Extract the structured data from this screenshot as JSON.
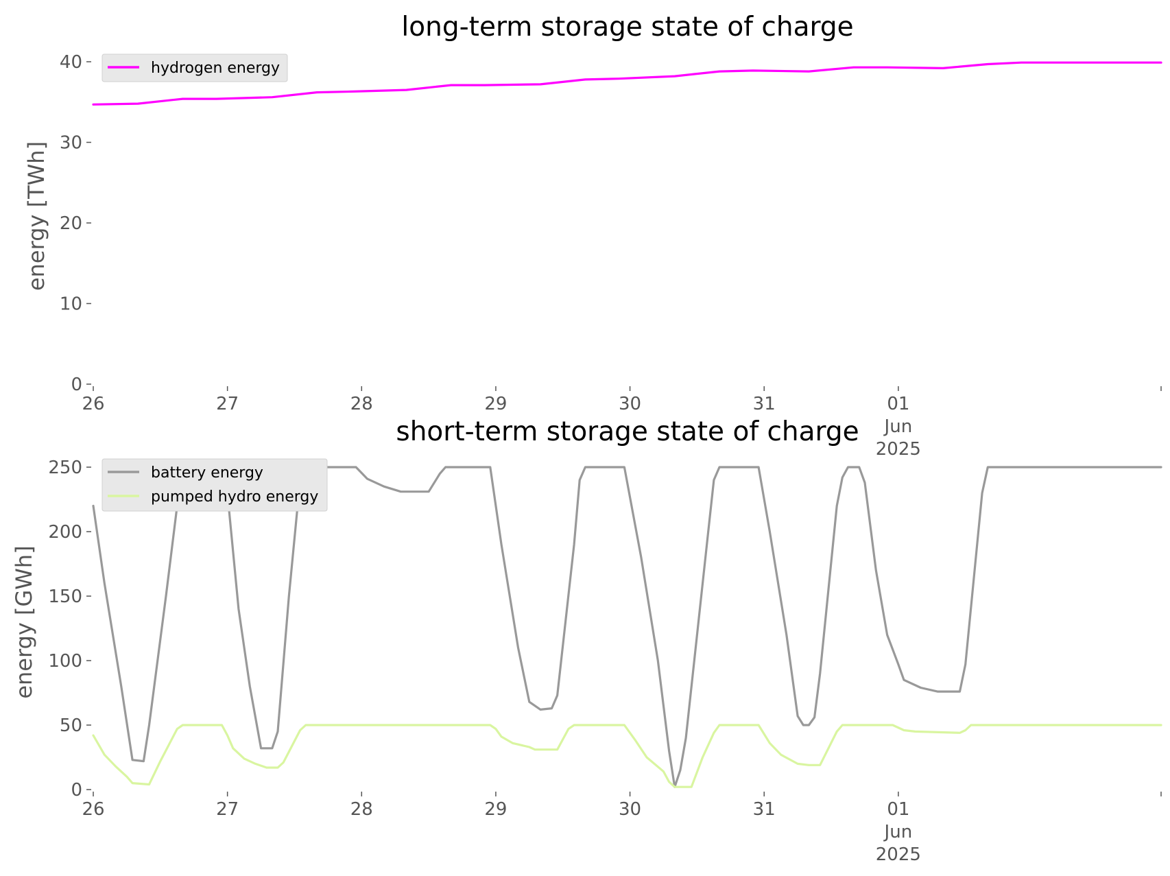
{
  "chart_data": [
    {
      "type": "line",
      "title": "long-term storage state of charge",
      "xlabel": "",
      "ylabel": "energy [TWh]",
      "ylim": [
        0,
        40
      ],
      "y_ticks": [
        0,
        10,
        20,
        30,
        40
      ],
      "x_range": [
        "2025-05-26T00:00",
        "2025-06-02T23:00"
      ],
      "x_ticks": [
        {
          "x": "2025-05-26T00:00",
          "lines": [
            "26"
          ]
        },
        {
          "x": "2025-05-27T00:00",
          "lines": [
            "27"
          ]
        },
        {
          "x": "2025-05-28T00:00",
          "lines": [
            "28"
          ]
        },
        {
          "x": "2025-05-29T00:00",
          "lines": [
            "29"
          ]
        },
        {
          "x": "2025-05-30T00:00",
          "lines": [
            "30"
          ]
        },
        {
          "x": "2025-05-31T00:00",
          "lines": [
            "31"
          ]
        },
        {
          "x": "2025-06-01T00:00",
          "lines": [
            "01",
            "Jun",
            "2025"
          ]
        },
        {
          "x": "2025-06-02T23:00",
          "lines": []
        }
      ],
      "grid": false,
      "legend_position": "top-left",
      "series": [
        {
          "name": "hydrogen energy",
          "color": "#ff00ff",
          "points": [
            [
              "2025-05-26T00:00",
              34.7
            ],
            [
              "2025-05-26T08:00",
              34.8
            ],
            [
              "2025-05-26T16:00",
              35.4
            ],
            [
              "2025-05-26T22:00",
              35.4
            ],
            [
              "2025-05-27T08:00",
              35.6
            ],
            [
              "2025-05-27T16:00",
              36.2
            ],
            [
              "2025-05-27T22:00",
              36.3
            ],
            [
              "2025-05-28T08:00",
              36.5
            ],
            [
              "2025-05-28T16:00",
              37.1
            ],
            [
              "2025-05-28T22:00",
              37.1
            ],
            [
              "2025-05-29T08:00",
              37.2
            ],
            [
              "2025-05-29T16:00",
              37.8
            ],
            [
              "2025-05-29T22:00",
              37.9
            ],
            [
              "2025-05-30T08:00",
              38.2
            ],
            [
              "2025-05-30T16:00",
              38.8
            ],
            [
              "2025-05-30T22:00",
              38.9
            ],
            [
              "2025-05-31T08:00",
              38.8
            ],
            [
              "2025-05-31T16:00",
              39.3
            ],
            [
              "2025-05-31T22:00",
              39.3
            ],
            [
              "2025-06-01T08:00",
              39.2
            ],
            [
              "2025-06-01T16:00",
              39.7
            ],
            [
              "2025-06-01T22:00",
              39.9
            ],
            [
              "2025-06-02T23:00",
              39.9
            ]
          ]
        }
      ]
    },
    {
      "type": "line",
      "title": "short-term storage state of charge",
      "xlabel": "",
      "ylabel": "energy [GWh]",
      "ylim": [
        0,
        250
      ],
      "y_ticks": [
        0,
        50,
        100,
        150,
        200,
        250
      ],
      "x_range": [
        "2025-05-26T00:00",
        "2025-06-02T23:00"
      ],
      "x_ticks": [
        {
          "x": "2025-05-26T00:00",
          "lines": [
            "26"
          ]
        },
        {
          "x": "2025-05-27T00:00",
          "lines": [
            "27"
          ]
        },
        {
          "x": "2025-05-28T00:00",
          "lines": [
            "28"
          ]
        },
        {
          "x": "2025-05-29T00:00",
          "lines": [
            "29"
          ]
        },
        {
          "x": "2025-05-30T00:00",
          "lines": [
            "30"
          ]
        },
        {
          "x": "2025-05-31T00:00",
          "lines": [
            "31"
          ]
        },
        {
          "x": "2025-06-01T00:00",
          "lines": [
            "01",
            "Jun",
            "2025"
          ]
        },
        {
          "x": "2025-06-02T23:00",
          "lines": []
        }
      ],
      "grid": false,
      "legend_position": "top-left",
      "series": [
        {
          "name": "battery energy",
          "color": "#999999",
          "points": [
            [
              "2025-05-26T00:00",
              220
            ],
            [
              "2025-05-26T02:00",
              160
            ],
            [
              "2025-05-26T05:00",
              80
            ],
            [
              "2025-05-26T07:00",
              23
            ],
            [
              "2025-05-26T09:00",
              22
            ],
            [
              "2025-05-26T10:00",
              50
            ],
            [
              "2025-05-26T13:00",
              150
            ],
            [
              "2025-05-26T15:00",
              220
            ],
            [
              "2025-05-26T16:00",
              250
            ],
            [
              "2025-05-26T23:00",
              250
            ],
            [
              "2025-05-27T00:00",
              230
            ],
            [
              "2025-05-27T02:00",
              140
            ],
            [
              "2025-05-27T04:00",
              80
            ],
            [
              "2025-05-27T06:00",
              32
            ],
            [
              "2025-05-27T08:00",
              32
            ],
            [
              "2025-05-27T09:00",
              45
            ],
            [
              "2025-05-27T11:00",
              150
            ],
            [
              "2025-05-27T13:00",
              240
            ],
            [
              "2025-05-27T14:00",
              250
            ],
            [
              "2025-05-27T23:00",
              250
            ],
            [
              "2025-05-28T01:00",
              241
            ],
            [
              "2025-05-28T04:00",
              235
            ],
            [
              "2025-05-28T07:00",
              231
            ],
            [
              "2025-05-28T12:00",
              231
            ],
            [
              "2025-05-28T14:00",
              245
            ],
            [
              "2025-05-28T15:00",
              250
            ],
            [
              "2025-05-28T23:00",
              250
            ],
            [
              "2025-05-29T01:00",
              190
            ],
            [
              "2025-05-29T04:00",
              110
            ],
            [
              "2025-05-29T06:00",
              68
            ],
            [
              "2025-05-29T08:00",
              62
            ],
            [
              "2025-05-29T10:00",
              63
            ],
            [
              "2025-05-29T11:00",
              73
            ],
            [
              "2025-05-29T14:00",
              190
            ],
            [
              "2025-05-29T15:00",
              240
            ],
            [
              "2025-05-29T16:00",
              250
            ],
            [
              "2025-05-29T23:00",
              250
            ],
            [
              "2025-05-30T02:00",
              180
            ],
            [
              "2025-05-30T05:00",
              100
            ],
            [
              "2025-05-30T07:00",
              30
            ],
            [
              "2025-05-30T08:00",
              2
            ],
            [
              "2025-05-30T09:00",
              15
            ],
            [
              "2025-05-30T10:00",
              40
            ],
            [
              "2025-05-30T14:00",
              200
            ],
            [
              "2025-05-30T15:00",
              240
            ],
            [
              "2025-05-30T16:00",
              250
            ],
            [
              "2025-05-30T23:00",
              250
            ],
            [
              "2025-05-31T01:00",
              200
            ],
            [
              "2025-05-31T04:00",
              120
            ],
            [
              "2025-05-31T06:00",
              57
            ],
            [
              "2025-05-31T07:00",
              50
            ],
            [
              "2025-05-31T08:00",
              50
            ],
            [
              "2025-05-31T09:00",
              56
            ],
            [
              "2025-05-31T10:00",
              90
            ],
            [
              "2025-05-31T13:00",
              220
            ],
            [
              "2025-05-31T14:00",
              242
            ],
            [
              "2025-05-31T15:00",
              250
            ],
            [
              "2025-05-31T17:00",
              250
            ],
            [
              "2025-05-31T18:00",
              238
            ],
            [
              "2025-05-31T20:00",
              170
            ],
            [
              "2025-05-31T22:00",
              120
            ],
            [
              "2025-06-01T00:00",
              97
            ],
            [
              "2025-06-01T01:00",
              85
            ],
            [
              "2025-06-01T04:00",
              79
            ],
            [
              "2025-06-01T07:00",
              76
            ],
            [
              "2025-06-01T11:00",
              76
            ],
            [
              "2025-06-01T12:00",
              97
            ],
            [
              "2025-06-01T15:00",
              230
            ],
            [
              "2025-06-01T16:00",
              250
            ],
            [
              "2025-06-02T23:00",
              250
            ]
          ]
        },
        {
          "name": "pumped hydro energy",
          "color": "#d9f5a0",
          "points": [
            [
              "2025-05-26T00:00",
              42
            ],
            [
              "2025-05-26T02:00",
              27
            ],
            [
              "2025-05-26T04:00",
              18
            ],
            [
              "2025-05-26T06:00",
              10
            ],
            [
              "2025-05-26T07:00",
              5
            ],
            [
              "2025-05-26T10:00",
              4
            ],
            [
              "2025-05-26T12:00",
              22
            ],
            [
              "2025-05-26T15:00",
              47
            ],
            [
              "2025-05-26T16:00",
              50
            ],
            [
              "2025-05-26T23:00",
              50
            ],
            [
              "2025-05-27T00:00",
              42
            ],
            [
              "2025-05-27T01:00",
              32
            ],
            [
              "2025-05-27T03:00",
              24
            ],
            [
              "2025-05-27T05:00",
              20
            ],
            [
              "2025-05-27T07:00",
              17
            ],
            [
              "2025-05-27T09:00",
              17
            ],
            [
              "2025-05-27T10:00",
              21
            ],
            [
              "2025-05-27T13:00",
              46
            ],
            [
              "2025-05-27T14:00",
              50
            ],
            [
              "2025-05-28T23:00",
              50
            ],
            [
              "2025-05-29T00:00",
              47
            ],
            [
              "2025-05-29T01:00",
              41
            ],
            [
              "2025-05-29T03:00",
              36
            ],
            [
              "2025-05-29T06:00",
              33
            ],
            [
              "2025-05-29T07:00",
              31
            ],
            [
              "2025-05-29T11:00",
              31
            ],
            [
              "2025-05-29T13:00",
              47
            ],
            [
              "2025-05-29T14:00",
              50
            ],
            [
              "2025-05-29T23:00",
              50
            ],
            [
              "2025-05-30T01:00",
              38
            ],
            [
              "2025-05-30T03:00",
              25
            ],
            [
              "2025-05-30T06:00",
              14
            ],
            [
              "2025-05-30T07:00",
              6
            ],
            [
              "2025-05-30T08:00",
              2
            ],
            [
              "2025-05-30T11:00",
              2
            ],
            [
              "2025-05-30T13:00",
              25
            ],
            [
              "2025-05-30T15:00",
              44
            ],
            [
              "2025-05-30T16:00",
              50
            ],
            [
              "2025-05-30T23:00",
              50
            ],
            [
              "2025-05-31T01:00",
              36
            ],
            [
              "2025-05-31T03:00",
              27
            ],
            [
              "2025-05-31T06:00",
              20
            ],
            [
              "2025-05-31T08:00",
              19
            ],
            [
              "2025-05-31T10:00",
              19
            ],
            [
              "2025-05-31T13:00",
              45
            ],
            [
              "2025-05-31T14:00",
              50
            ],
            [
              "2025-05-31T23:00",
              50
            ],
            [
              "2025-06-01T01:00",
              46
            ],
            [
              "2025-06-01T03:00",
              45
            ],
            [
              "2025-06-01T11:00",
              44
            ],
            [
              "2025-06-01T12:00",
              46
            ],
            [
              "2025-06-01T13:00",
              50
            ],
            [
              "2025-06-02T23:00",
              50
            ]
          ]
        }
      ]
    }
  ]
}
